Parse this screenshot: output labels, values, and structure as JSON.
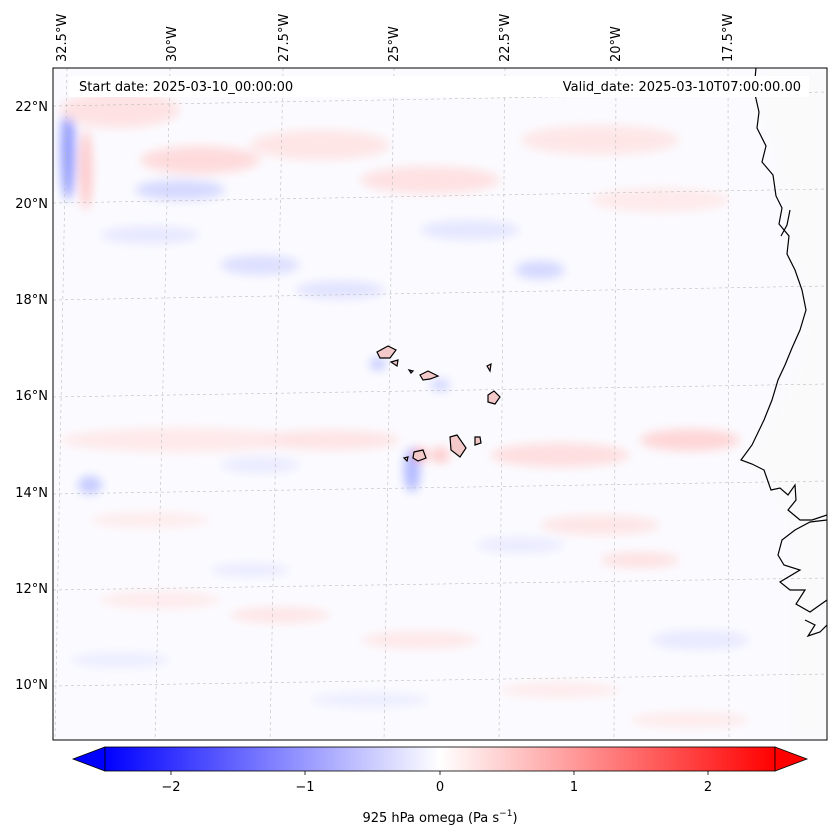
{
  "map": {
    "header": {
      "start_date": "Start date: 2025-03-10_00:00:00",
      "valid_date": "Valid_date: 2025-03-10T07:00:00.00"
    },
    "lon_labels": [
      "32.5°W",
      "30°W",
      "27.5°W",
      "25°W",
      "22.5°W",
      "20°W",
      "17.5°W"
    ],
    "lat_labels": [
      "22°N",
      "20°N",
      "18°N",
      "16°N",
      "14°N",
      "12°N",
      "10°N"
    ],
    "variable": "925 hPa omega",
    "colormap": "bwr",
    "colors": {
      "min": "#0000ff",
      "mid": "#ffffff",
      "max": "#ff0000",
      "coastline": "#000000",
      "gridline": "#bdbdbd"
    }
  },
  "colorbar": {
    "tick_labels": [
      "−2",
      "−1",
      "0",
      "1",
      "2"
    ],
    "label_text": "925 hPa omega (Pa s",
    "label_unit_exp": "−1",
    "label_close": ")",
    "range": [
      -2.6,
      2.6
    ],
    "extend": "both"
  }
}
